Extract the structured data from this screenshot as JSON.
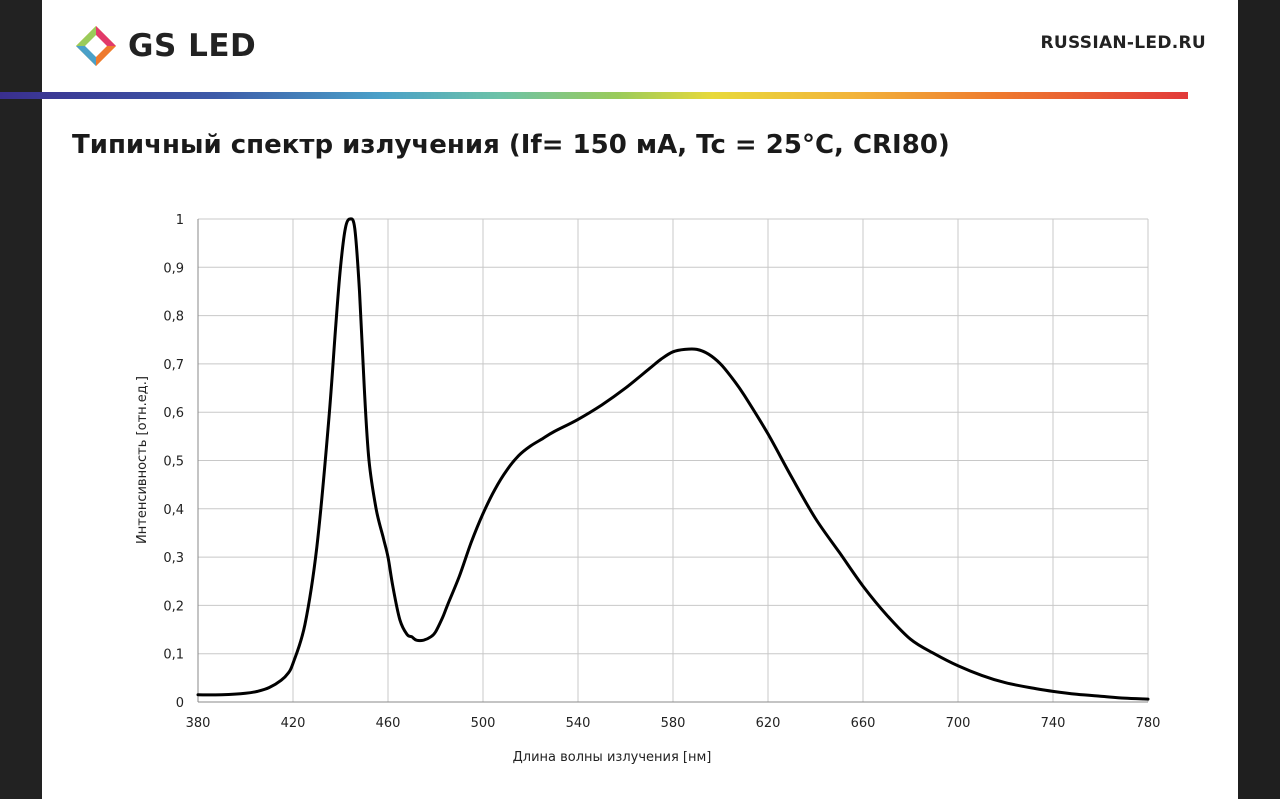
{
  "header": {
    "logo_text": "GS LED",
    "site": "RUSSIAN-LED.RU"
  },
  "colors": {
    "page_background": "#ffffff",
    "curve": "#000000",
    "grid": "#c8c8c8"
  },
  "chart_data": {
    "type": "line",
    "title": "Типичный спектр излучения (If= 150 мА, Tc = 25°C, CRI80)",
    "xlabel": "Длина волны излучения [нм]",
    "ylabel": "Интенсивность [отн.ед.]",
    "xlim": [
      380,
      780
    ],
    "ylim": [
      0,
      1
    ],
    "x_ticks": [
      380,
      420,
      460,
      500,
      540,
      580,
      620,
      660,
      700,
      740,
      780
    ],
    "x_tick_labels": [
      "380",
      "420",
      "460",
      "500",
      "540",
      "580",
      "620",
      "660",
      "700",
      "740",
      "780"
    ],
    "y_ticks": [
      0,
      0.1,
      0.2,
      0.3,
      0.4,
      0.5,
      0.6,
      0.7,
      0.8,
      0.9,
      1
    ],
    "y_tick_labels": [
      "0",
      "0,1",
      "0,2",
      "0,3",
      "0,4",
      "0,5",
      "0,6",
      "0,7",
      "0,8",
      "0,9",
      "1"
    ],
    "grid": true,
    "legend": "none",
    "series": [
      {
        "x": [
          380,
          390,
          400,
          405,
          410,
          415,
          418,
          420,
          425,
          430,
          435,
          438,
          440,
          442,
          444,
          446,
          448,
          450,
          452,
          455,
          458,
          460,
          462,
          465,
          468,
          470,
          472,
          475,
          478,
          480,
          483,
          485,
          490,
          495,
          500,
          505,
          510,
          515,
          520,
          525,
          530,
          540,
          550,
          560,
          570,
          575,
          580,
          585,
          590,
          595,
          600,
          605,
          610,
          620,
          630,
          640,
          650,
          660,
          670,
          680,
          690,
          700,
          710,
          720,
          730,
          740,
          750,
          760,
          770,
          780
        ],
        "y": [
          0.015,
          0.015,
          0.018,
          0.022,
          0.03,
          0.045,
          0.06,
          0.08,
          0.16,
          0.32,
          0.58,
          0.78,
          0.9,
          0.98,
          1.0,
          0.98,
          0.85,
          0.65,
          0.5,
          0.4,
          0.34,
          0.3,
          0.24,
          0.17,
          0.14,
          0.135,
          0.128,
          0.128,
          0.135,
          0.145,
          0.175,
          0.2,
          0.26,
          0.33,
          0.39,
          0.44,
          0.48,
          0.51,
          0.53,
          0.545,
          0.56,
          0.585,
          0.615,
          0.65,
          0.69,
          0.71,
          0.725,
          0.73,
          0.73,
          0.72,
          0.7,
          0.67,
          0.635,
          0.555,
          0.465,
          0.38,
          0.31,
          0.24,
          0.18,
          0.13,
          0.1,
          0.075,
          0.055,
          0.04,
          0.03,
          0.022,
          0.016,
          0.012,
          0.008,
          0.006
        ]
      }
    ]
  }
}
